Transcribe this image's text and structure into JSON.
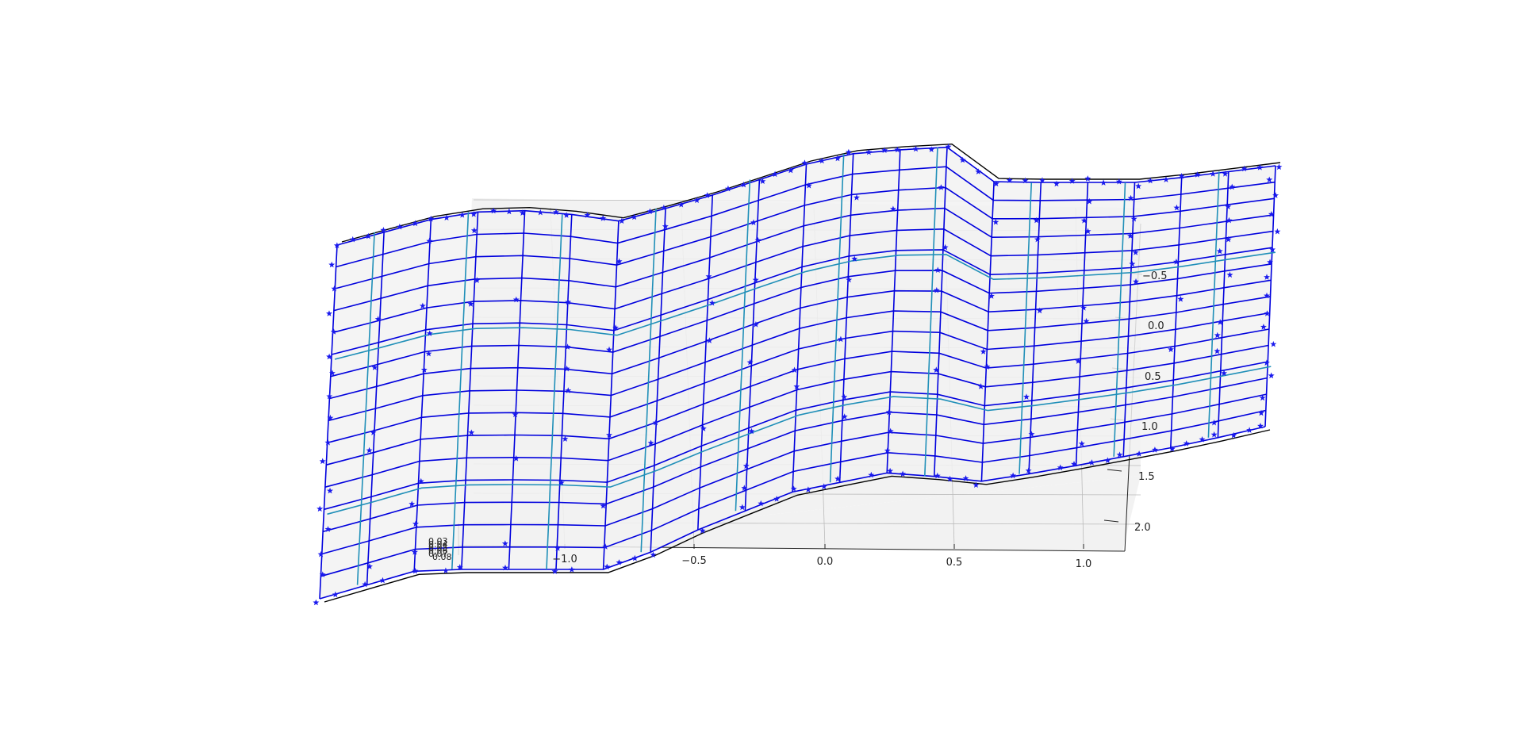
{
  "chart_data": {
    "type": "surface3d",
    "title": "",
    "xlabel": "",
    "ylabel": "",
    "zlabel": "",
    "grid": true,
    "x_ticks": [
      "−1.0",
      "−0.5",
      "0.0",
      "0.5",
      "1.0"
    ],
    "y_ticks": [
      "−0.5",
      "0.0",
      "0.5",
      "1.0",
      "1.5",
      "2.0"
    ],
    "z_ticks": [
      "0.03",
      "0.04",
      "0.05",
      "0.06",
      "0.07",
      "0.08"
    ],
    "colors": {
      "mesh": "#0000dd",
      "markers": "#1a1aee",
      "overlay": "#1f8fb8",
      "outline": "#000000",
      "pane": "#f2f2f2",
      "grid": "#bbbbbb"
    },
    "mesh": {
      "columns": 20,
      "rows": 16,
      "marker": "star"
    }
  }
}
